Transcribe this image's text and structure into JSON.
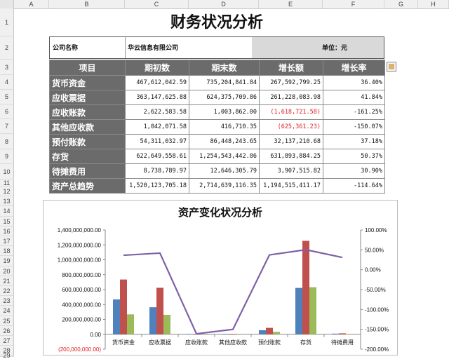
{
  "sheet": {
    "columns": [
      "A",
      "B",
      "C",
      "D",
      "E",
      "F",
      "G",
      "H"
    ],
    "rows": [
      "1",
      "2",
      "3",
      "4",
      "5",
      "6",
      "7",
      "8",
      "9",
      "10",
      "11",
      "12",
      "13",
      "14",
      "15",
      "16",
      "17",
      "18",
      "19",
      "20",
      "21",
      "22",
      "23",
      "24",
      "25",
      "26",
      "27",
      "28",
      "29"
    ]
  },
  "report": {
    "title": "财务状况分析",
    "company_label": "公司名称",
    "company_name": "华云信息有限公司",
    "unit": "单位：元",
    "headers": [
      "项目",
      "期初数",
      "期末数",
      "增长额",
      "增长率"
    ],
    "rows": [
      {
        "item": "货币资金",
        "begin": "467,612,042.59",
        "end": "735,204,841.84",
        "growth": "267,592,799.25",
        "rate": "36.40%",
        "neg": false
      },
      {
        "item": "应收票据",
        "begin": "363,147,625.88",
        "end": "624,375,709.86",
        "growth": "261,228,083.98",
        "rate": "41.84%",
        "neg": false
      },
      {
        "item": "应收账款",
        "begin": "2,622,583.58",
        "end": "1,003,862.00",
        "growth": "(1,618,721.58)",
        "rate": "-161.25%",
        "neg": true
      },
      {
        "item": "其他应收款",
        "begin": "1,042,071.58",
        "end": "416,710.35",
        "growth": "(625,361.23)",
        "rate": "-150.07%",
        "neg": true
      },
      {
        "item": "预付账款",
        "begin": "54,311,032.97",
        "end": "86,448,243.65",
        "growth": "32,137,210.68",
        "rate": "37.18%",
        "neg": false
      },
      {
        "item": "存货",
        "begin": "622,649,558.61",
        "end": "1,254,543,442.86",
        "growth": "631,893,884.25",
        "rate": "50.37%",
        "neg": false
      },
      {
        "item": "待摊费用",
        "begin": "8,738,789.97",
        "end": "12,646,305.79",
        "growth": "3,907,515.82",
        "rate": "30.90%",
        "neg": false
      },
      {
        "item": "资产总趋势",
        "begin": "1,520,123,705.18",
        "end": "2,714,639,116.35",
        "growth": "1,194,515,411.17",
        "rate": "-114.64%",
        "neg": false
      }
    ]
  },
  "chart_data": {
    "type": "bar",
    "title": "资产变化状况分析",
    "categories": [
      "货币资金",
      "应收票据",
      "应收账款",
      "其他应收款",
      "预付账款",
      "存货",
      "待摊费用"
    ],
    "series": [
      {
        "type": "bar",
        "color": "#4f81bd",
        "values": [
          467612042.59,
          363147625.88,
          2622583.58,
          1042071.58,
          54311032.97,
          622649558.61,
          8738789.97
        ]
      },
      {
        "type": "bar",
        "color": "#c0504d",
        "values": [
          735204841.84,
          624375709.86,
          1003862.0,
          416710.35,
          86448243.65,
          1254543442.86,
          12646305.79
        ]
      },
      {
        "type": "bar",
        "color": "#9bbb59",
        "values": [
          267592799.25,
          261228083.98,
          -1618721.58,
          -625361.23,
          32137210.68,
          631893884.25,
          3907515.82
        ]
      },
      {
        "type": "line",
        "color": "#7f5fa8",
        "axis": "right",
        "values": [
          36.4,
          41.84,
          -161.25,
          -150.07,
          37.18,
          50.37,
          30.9
        ]
      }
    ],
    "ylim": [
      -200000000,
      1400000000
    ],
    "y_ticks": [
      "1,400,000,000.00",
      "1,200,000,000.00",
      "1,000,000,000.00",
      "800,000,000.00",
      "600,000,000.00",
      "400,000,000.00",
      "200,000,000.00",
      "0.00",
      "(200,000,000.00)"
    ],
    "y2lim": [
      -200,
      100
    ],
    "y2_ticks": [
      "100.00%",
      "50.00%",
      "0.00%",
      "-50.00%",
      "-100.00%",
      "-150.00%",
      "-200.00%"
    ],
    "grid": false,
    "legend": "none"
  }
}
